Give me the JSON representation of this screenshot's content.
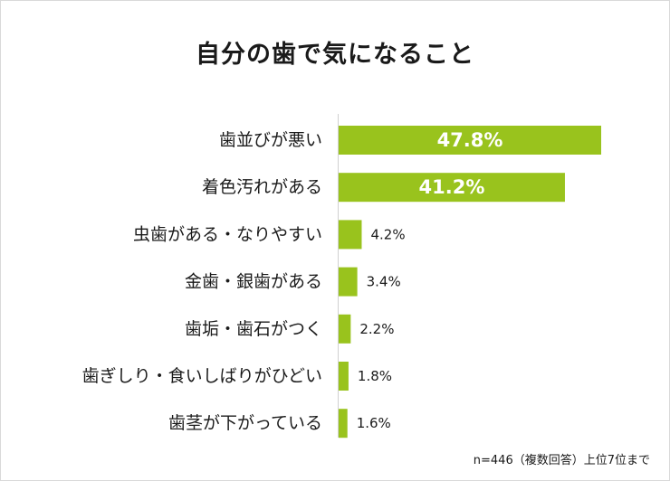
{
  "chart_data": {
    "type": "bar",
    "orientation": "horizontal",
    "title": "自分の歯で気になること",
    "categories": [
      "歯並びが悪い",
      "着色汚れがある",
      "虫歯がある・なりやすい",
      "金歯・銀歯がある",
      "歯垢・歯石がつく",
      "歯ぎしり・食いしばりがひどい",
      "歯茎が下がっている"
    ],
    "values": [
      47.8,
      41.2,
      4.2,
      3.4,
      2.2,
      1.8,
      1.6
    ],
    "value_labels": [
      "47.8%",
      "41.2%",
      "4.2%",
      "3.4%",
      "2.2%",
      "1.8%",
      "1.6%"
    ],
    "unit": "%",
    "xlim": [
      0,
      60
    ],
    "bar_color": "#99c31d",
    "note": "n=446（複数回答）上位7位まで"
  }
}
